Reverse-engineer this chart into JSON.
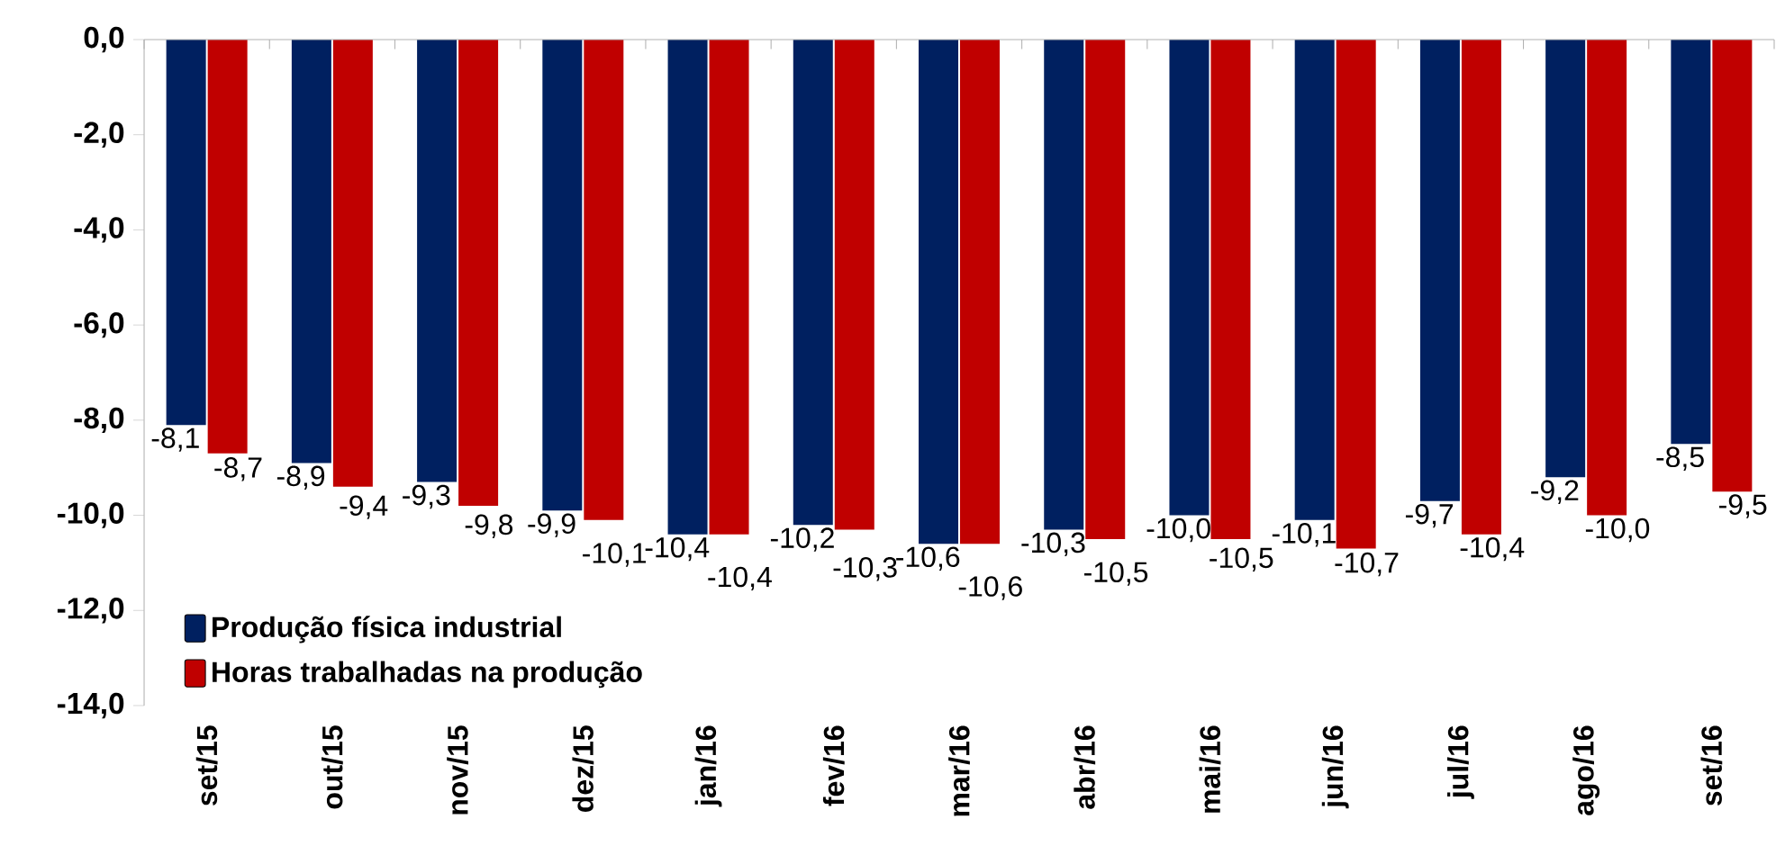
{
  "chart_data": {
    "type": "bar",
    "categories": [
      "set/15",
      "out/15",
      "nov/15",
      "dez/15",
      "jan/16",
      "fev/16",
      "mar/16",
      "abr/16",
      "mai/16",
      "jun/16",
      "jul/16",
      "ago/16",
      "set/16"
    ],
    "series": [
      {
        "name": "Produção física industrial",
        "color": "#002060",
        "values": [
          -8.1,
          -8.9,
          -9.3,
          -9.9,
          -10.4,
          -10.2,
          -10.6,
          -10.3,
          -10.0,
          -10.1,
          -9.7,
          -9.2,
          -8.5
        ],
        "value_labels": [
          "-8,1",
          "-8,9",
          "-9,3",
          "-9,9",
          "-10,4",
          "-10,2",
          "-10,6",
          "-10,3",
          "-10,0",
          "-10,1",
          "-9,7",
          "-9,2",
          "-8,5"
        ]
      },
      {
        "name": "Horas trabalhadas na produção",
        "color": "#c00000",
        "values": [
          -8.7,
          -9.4,
          -9.8,
          -10.1,
          -10.4,
          -10.3,
          -10.6,
          -10.5,
          -10.5,
          -10.7,
          -10.4,
          -10.0,
          -9.5
        ],
        "value_labels": [
          "-8,7",
          "-9,4",
          "-9,8",
          "-10,1",
          "-10,4",
          "-10,3",
          "-10,6",
          "-10,5",
          "-10,5",
          "-10,7",
          "-10,4",
          "-10,0",
          "-9,5"
        ]
      }
    ],
    "ylim": [
      -14,
      0
    ],
    "yticks": [
      {
        "value": 0,
        "label": "0,0"
      },
      {
        "value": -2,
        "label": "-2,0"
      },
      {
        "value": -4,
        "label": "-4,0"
      },
      {
        "value": -6,
        "label": "-6,0"
      },
      {
        "value": -8,
        "label": "-8,0"
      },
      {
        "value": -10,
        "label": "-10,0"
      },
      {
        "value": -12,
        "label": "-12,0"
      },
      {
        "value": -14,
        "label": "-14,0"
      }
    ],
    "grid": false,
    "legend": "bottom left"
  }
}
